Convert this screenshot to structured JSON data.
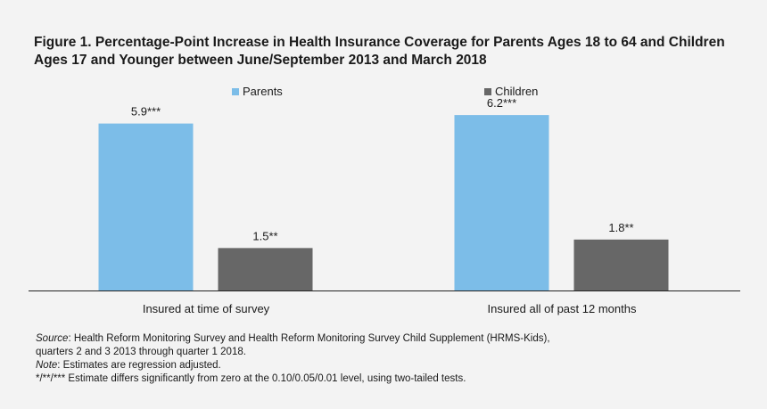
{
  "colors": {
    "parents": "#7cbde8",
    "children": "#676767",
    "axis": "#222222"
  },
  "chart_data": {
    "type": "bar",
    "title": "Figure 1. Percentage-Point Increase in Health Insurance Coverage for Parents Ages 18 to 64 and Children Ages 17 and Younger between June/September 2013 and March 2018",
    "categories": [
      "Insured at time of survey",
      "Insured all of past 12 months"
    ],
    "series": [
      {
        "name": "Parents",
        "values": [
          5.9,
          6.2
        ],
        "labels": [
          "5.9***",
          "6.2***"
        ]
      },
      {
        "name": "Children",
        "values": [
          1.5,
          1.8
        ],
        "labels": [
          "1.5**",
          "1.8**"
        ]
      }
    ],
    "ylim": [
      0,
      7
    ],
    "grid": false,
    "legend": "top"
  },
  "notes": {
    "source_label": "Source",
    "source_text": ": Health Reform Monitoring Survey and Health Reform Monitoring Survey Child Supplement (HRMS-Kids),",
    "source_text2": "quarters 2 and 3 2013 through quarter 1 2018.",
    "note_label": "Note",
    "note_text": ": Estimates are regression adjusted.",
    "significance": "*/**/*** Estimate differs significantly from zero at the 0.10/0.05/0.01 level, using two-tailed tests."
  }
}
